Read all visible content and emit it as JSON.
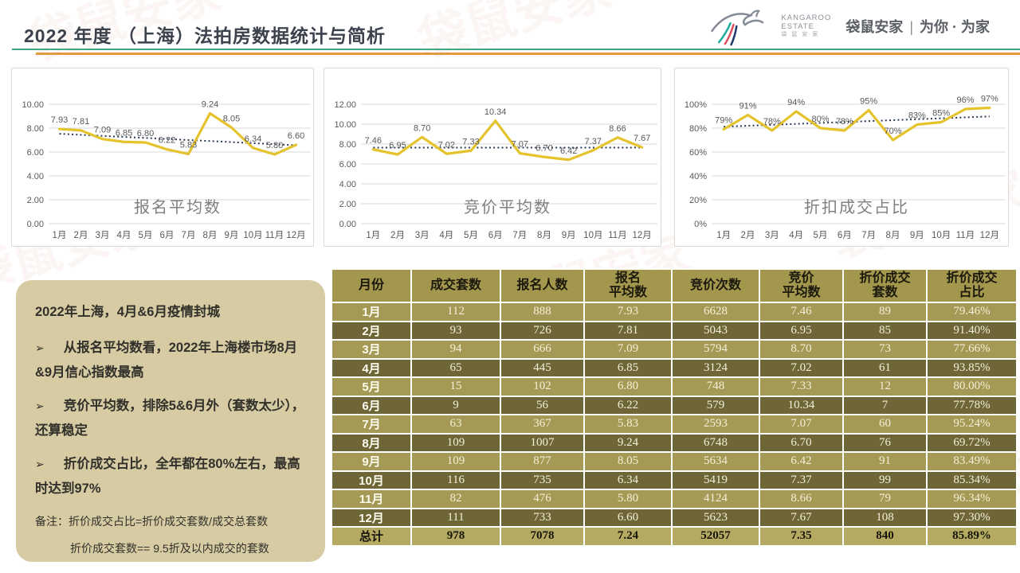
{
  "header": {
    "title": "2022 年度 （上海）法拍房数据统计与简析",
    "logo": {
      "en_line1": "KANGAROO",
      "en_line2": "ESTATE",
      "cn_small": "袋 鼠 安 家",
      "cn_brand": "袋鼠安家",
      "divider": "|",
      "cn_slogan": "为你 · 为家"
    }
  },
  "watermark_text": "袋鼠安家",
  "theme": {
    "accent_green": "#45a57e",
    "accent_orange": "#e19a3f",
    "title_color": "#3c424d",
    "chart_line": "#e5c32d",
    "chart_trend": "#2b3a55",
    "axis_text": "#595959",
    "chart_title_color": "#7f7f7f",
    "grid_color": "#d9d9d9",
    "note_bg": "#d6cba3",
    "note_text": "#32302a",
    "table_header_bg": "#a3964d",
    "row_light_bg": "#a49a55",
    "row_dark_bg": "#6e6637",
    "total_row_bg": "#b5aa61",
    "cell_text": "#f4efd8",
    "watermark_color": "#c0574f"
  },
  "chart_data": [
    {
      "type": "line",
      "title": "报名平均数",
      "categories": [
        "1月",
        "2月",
        "3月",
        "4月",
        "5月",
        "6月",
        "7月",
        "8月",
        "9月",
        "10月",
        "11月",
        "12月"
      ],
      "values": [
        7.93,
        7.81,
        7.09,
        6.85,
        6.8,
        6.22,
        5.83,
        9.24,
        8.05,
        6.34,
        5.8,
        6.6
      ],
      "labels": [
        "7.93",
        "7.81",
        "7.09",
        "6.85",
        "6.80",
        "6.22",
        "5.83",
        "9.24",
        "8.05",
        "6.34",
        "5.80",
        "6.60"
      ],
      "ylim": [
        0,
        10
      ],
      "ytick_values": [
        0,
        2,
        4,
        6,
        8,
        10
      ],
      "ytick_labels": [
        "0.00",
        "2.00",
        "4.00",
        "6.00",
        "8.00",
        "10.00"
      ],
      "grid": true,
      "legend_position": "none",
      "trendline": true,
      "xlabel": "",
      "ylabel": ""
    },
    {
      "type": "line",
      "title": "竞价平均数",
      "categories": [
        "1月",
        "2月",
        "3月",
        "4月",
        "5月",
        "6月",
        "7月",
        "8月",
        "9月",
        "10月",
        "11月",
        "12月"
      ],
      "values": [
        7.46,
        6.95,
        8.7,
        7.02,
        7.33,
        10.34,
        7.07,
        6.7,
        6.42,
        7.37,
        8.66,
        7.67
      ],
      "labels": [
        "7.46",
        "6.95",
        "8.70",
        "7.02",
        "7.33",
        "10.34",
        "7.07",
        "6.70",
        "6.42",
        "7.37",
        "8.66",
        "7.67"
      ],
      "ylim": [
        0,
        12
      ],
      "ytick_values": [
        0,
        2,
        4,
        6,
        8,
        10,
        12
      ],
      "ytick_labels": [
        "0.00",
        "2.00",
        "4.00",
        "6.00",
        "8.00",
        "10.00",
        "12.00"
      ],
      "grid": true,
      "legend_position": "none",
      "trendline": true,
      "xlabel": "",
      "ylabel": ""
    },
    {
      "type": "line",
      "title": "折扣成交占比",
      "categories": [
        "1月",
        "2月",
        "3月",
        "4月",
        "5月",
        "6月",
        "7月",
        "8月",
        "9月",
        "10月",
        "11月",
        "12月"
      ],
      "values": [
        79,
        91,
        78,
        94,
        80,
        78,
        95,
        70,
        83,
        85,
        96,
        97
      ],
      "labels": [
        "79%",
        "91%",
        "78%",
        "94%",
        "80%",
        "78%",
        "95%",
        "70%",
        "83%",
        "85%",
        "96%",
        "97%"
      ],
      "ylim": [
        0,
        100
      ],
      "ytick_values": [
        0,
        20,
        40,
        60,
        80,
        100
      ],
      "ytick_labels": [
        "0%",
        "20%",
        "40%",
        "60%",
        "80%",
        "100%"
      ],
      "grid": true,
      "legend_position": "none",
      "trendline": true,
      "xlabel": "",
      "ylabel": ""
    }
  ],
  "notes": {
    "headline": "2022年上海，4月&6月疫情封城",
    "bullet_marker": "➢",
    "bullets": [
      "从报名平均数看，2022年上海楼市场8月&9月信心指数最高",
      "竞价平均数，排除5&6月外（套数太少），还算稳定",
      "折价成交占比，全年都在80%左右，最高时达到97%"
    ],
    "remarks": [
      "备注：折价成交占比=折价成交套数/成交总套数",
      "折价成交套数== 9.5折及以内成交的套数"
    ]
  },
  "table": {
    "headers": [
      "月份",
      "成交套数",
      "报名人数",
      "报名\n平均数",
      "竞价次数",
      "竞价\n平均数",
      "折价成交\n套数",
      "折价成交\n占比"
    ],
    "rows": [
      [
        "1月",
        "112",
        "888",
        "7.93",
        "6628",
        "7.46",
        "89",
        "79.46%"
      ],
      [
        "2月",
        "93",
        "726",
        "7.81",
        "5043",
        "6.95",
        "85",
        "91.40%"
      ],
      [
        "3月",
        "94",
        "666",
        "7.09",
        "5794",
        "8.70",
        "73",
        "77.66%"
      ],
      [
        "4月",
        "65",
        "445",
        "6.85",
        "3124",
        "7.02",
        "61",
        "93.85%"
      ],
      [
        "5月",
        "15",
        "102",
        "6.80",
        "748",
        "7.33",
        "12",
        "80.00%"
      ],
      [
        "6月",
        "9",
        "56",
        "6.22",
        "579",
        "10.34",
        "7",
        "77.78%"
      ],
      [
        "7月",
        "63",
        "367",
        "5.83",
        "2593",
        "7.07",
        "60",
        "95.24%"
      ],
      [
        "8月",
        "109",
        "1007",
        "9.24",
        "6748",
        "6.70",
        "76",
        "69.72%"
      ],
      [
        "9月",
        "109",
        "877",
        "8.05",
        "5634",
        "6.42",
        "91",
        "83.49%"
      ],
      [
        "10月",
        "116",
        "735",
        "6.34",
        "5419",
        "7.37",
        "99",
        "85.34%"
      ],
      [
        "11月",
        "82",
        "476",
        "5.80",
        "4124",
        "8.66",
        "79",
        "96.34%"
      ],
      [
        "12月",
        "111",
        "733",
        "6.60",
        "5623",
        "7.67",
        "108",
        "97.30%"
      ]
    ],
    "total": [
      "总计",
      "978",
      "7078",
      "7.24",
      "52057",
      "7.35",
      "840",
      "85.89%"
    ]
  }
}
